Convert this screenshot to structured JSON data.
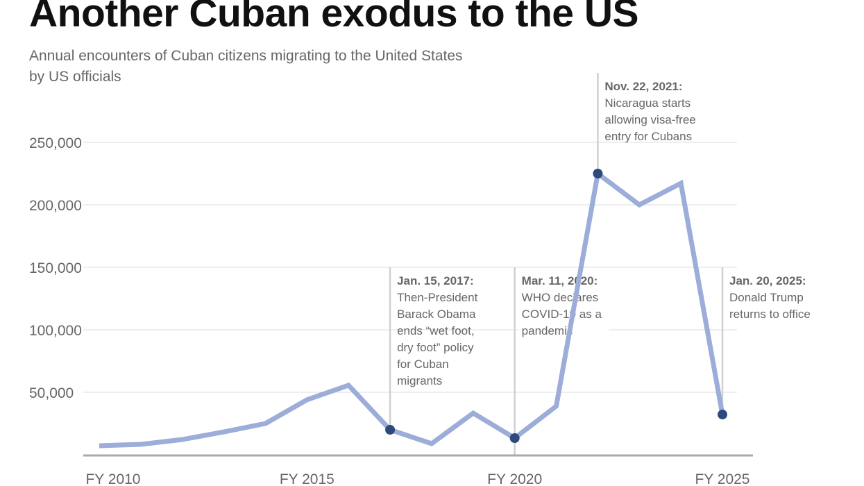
{
  "chart_data": {
    "type": "line",
    "title": "Another Cuban exodus to the US",
    "subtitle": "Annual encounters of Cuban citizens migrating to the United States by US officials",
    "xlabel": "",
    "ylabel": "",
    "x": [
      2010,
      2011,
      2012,
      2013,
      2014,
      2015,
      2016,
      2017,
      2018,
      2019,
      2020,
      2021,
      2022,
      2023,
      2024,
      2025
    ],
    "values": [
      7200,
      8300,
      12200,
      18300,
      25000,
      44000,
      55600,
      20000,
      8900,
      33300,
      13300,
      38900,
      225000,
      200000,
      217200,
      32200
    ],
    "ylim": [
      0,
      250000
    ],
    "yticks": [
      50000,
      100000,
      150000,
      200000,
      250000
    ],
    "ytick_labels": [
      "50,000",
      "100,000",
      "150,000",
      "200,000",
      "250,000"
    ],
    "xticks": [
      2010,
      2015,
      2020,
      2025
    ],
    "xtick_labels": [
      "FY 2010",
      "FY 2015",
      "FY 2020",
      "FY 2025"
    ],
    "grid": true,
    "colors": {
      "line": "#9badd8",
      "marker": "#2c4a7c",
      "grid": "#dddddd",
      "annotation_line": "#d0d0d0"
    },
    "annotations": [
      {
        "x": 2017,
        "marker": true,
        "heading": "Jan. 15, 2017:",
        "lines": [
          "Then-President",
          "Barack Obama",
          "ends “wet foot,",
          "dry foot” policy",
          "for Cuban",
          "migrants"
        ]
      },
      {
        "x": 2020,
        "marker": true,
        "heading": "Mar. 11, 2020:",
        "lines": [
          "WHO declares",
          "COVID-19 as a",
          "pandemic"
        ]
      },
      {
        "x": 2022,
        "marker": true,
        "heading": "Nov. 22, 2021:",
        "lines": [
          "Nicaragua starts",
          "allowing visa-free",
          "entry for Cubans"
        ]
      },
      {
        "x": 2025,
        "marker": true,
        "heading": "Jan. 20, 2025:",
        "lines": [
          "Donald Trump",
          "returns to office"
        ]
      }
    ]
  }
}
